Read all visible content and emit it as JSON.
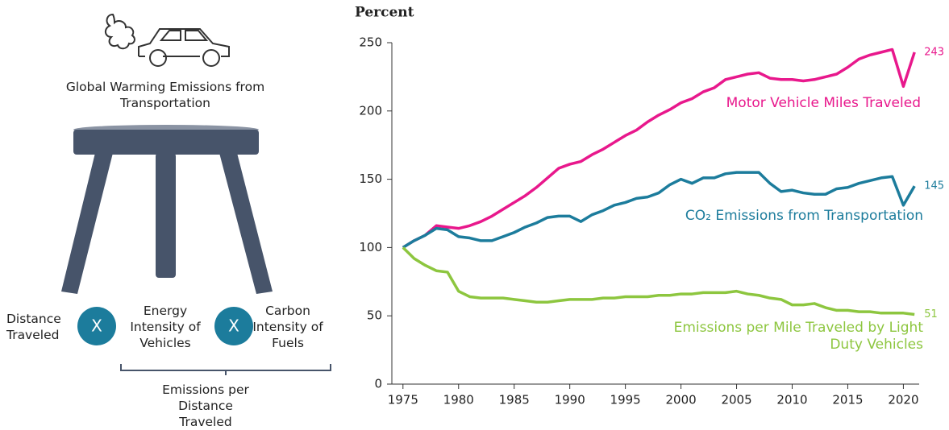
{
  "infographic": {
    "caption": "Global Warming Emissions from Transportation",
    "factors": [
      "Distance Traveled",
      "Energy Intensity of Vehicles",
      "Carbon Intensity of Fuels"
    ],
    "operators": [
      "X",
      "X"
    ],
    "bracket_label": "Emissions per Distance Traveled"
  },
  "chart_data": {
    "type": "line",
    "y_label": "Percent",
    "x": [
      1975,
      1976,
      1977,
      1978,
      1979,
      1980,
      1981,
      1982,
      1983,
      1984,
      1985,
      1986,
      1987,
      1988,
      1989,
      1990,
      1991,
      1992,
      1993,
      1994,
      1995,
      1996,
      1997,
      1998,
      1999,
      2000,
      2001,
      2002,
      2003,
      2004,
      2005,
      2006,
      2007,
      2008,
      2009,
      2010,
      2011,
      2012,
      2013,
      2014,
      2015,
      2016,
      2017,
      2018,
      2019,
      2020,
      2021
    ],
    "xlim": [
      1974,
      2022
    ],
    "xticks": [
      1975,
      1980,
      1985,
      1990,
      1995,
      2000,
      2005,
      2010,
      2015,
      2020
    ],
    "ylim": [
      0,
      250
    ],
    "yticks": [
      0,
      50,
      100,
      150,
      200,
      250
    ],
    "grid": false,
    "series": [
      {
        "name": "Motor Vehicle Miles Traveled",
        "color": "#e8188c",
        "values": [
          100,
          105,
          109,
          116,
          115,
          114,
          116,
          119,
          123,
          128,
          133,
          138,
          144,
          151,
          158,
          161,
          163,
          168,
          172,
          177,
          182,
          186,
          192,
          197,
          201,
          206,
          209,
          214,
          217,
          223,
          225,
          227,
          228,
          224,
          223,
          223,
          222,
          223,
          225,
          227,
          232,
          238,
          241,
          243,
          245,
          218,
          243
        ]
      },
      {
        "name": "CO₂ Emissions from Transportation",
        "color": "#1c7c9c",
        "values": [
          100,
          105,
          109,
          114,
          113,
          108,
          107,
          105,
          105,
          108,
          111,
          115,
          118,
          122,
          123,
          123,
          119,
          124,
          127,
          131,
          133,
          136,
          137,
          140,
          146,
          150,
          147,
          151,
          151,
          154,
          155,
          155,
          155,
          147,
          141,
          142,
          140,
          139,
          139,
          143,
          144,
          147,
          149,
          151,
          152,
          131,
          145
        ]
      },
      {
        "name": "Emissions per Mile Traveled by Light Duty Vehicles",
        "color": "#8dc63f",
        "values": [
          100,
          92,
          87,
          83,
          82,
          68,
          64,
          63,
          63,
          63,
          62,
          61,
          60,
          60,
          61,
          62,
          62,
          62,
          63,
          63,
          64,
          64,
          64,
          65,
          65,
          66,
          66,
          67,
          67,
          67,
          68,
          66,
          65,
          63,
          62,
          58,
          58,
          59,
          56,
          54,
          54,
          53,
          53,
          52,
          52,
          52,
          51
        ]
      }
    ]
  }
}
